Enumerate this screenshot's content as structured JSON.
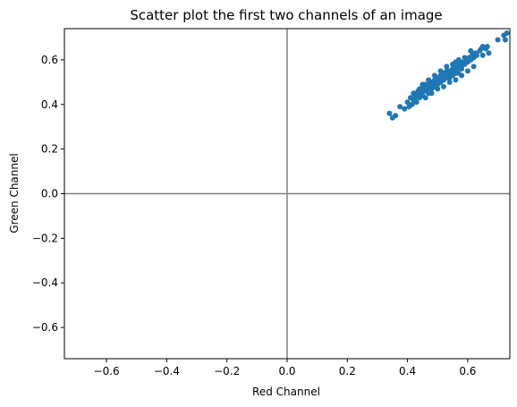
{
  "chart_data": {
    "type": "scatter",
    "title": "Scatter plot the first two channels of an image",
    "xlabel": "Red Channel",
    "ylabel": "Green Channel",
    "xlim": [
      -0.74,
      0.74
    ],
    "ylim": [
      -0.74,
      0.74
    ],
    "xticks": [
      -0.6,
      -0.4,
      -0.2,
      0.0,
      0.2,
      0.4,
      0.6
    ],
    "xtick_labels": [
      "−0.6",
      "−0.4",
      "−0.2",
      "0.0",
      "0.2",
      "0.4",
      "0.6"
    ],
    "yticks": [
      -0.6,
      -0.4,
      -0.2,
      0.0,
      0.2,
      0.4,
      0.6
    ],
    "ytick_labels": [
      "−0.6",
      "−0.4",
      "−0.2",
      "0.0",
      "0.2",
      "0.4",
      "0.6"
    ],
    "grid": false,
    "reference_lines": {
      "x": 0,
      "y": 0,
      "color": "#808080"
    },
    "series": [
      {
        "color": "#1f77b4",
        "x": [
          0.34,
          0.35,
          0.36,
          0.375,
          0.39,
          0.4,
          0.405,
          0.41,
          0.415,
          0.42,
          0.42,
          0.425,
          0.43,
          0.43,
          0.435,
          0.44,
          0.44,
          0.445,
          0.45,
          0.45,
          0.455,
          0.46,
          0.46,
          0.465,
          0.47,
          0.47,
          0.475,
          0.48,
          0.48,
          0.485,
          0.49,
          0.49,
          0.495,
          0.5,
          0.5,
          0.505,
          0.51,
          0.51,
          0.515,
          0.52,
          0.52,
          0.525,
          0.53,
          0.53,
          0.535,
          0.54,
          0.54,
          0.545,
          0.55,
          0.55,
          0.555,
          0.56,
          0.56,
          0.565,
          0.57,
          0.57,
          0.575,
          0.58,
          0.58,
          0.585,
          0.59,
          0.595,
          0.6,
          0.605,
          0.61,
          0.615,
          0.62,
          0.625,
          0.63,
          0.64,
          0.645,
          0.65,
          0.66,
          0.665,
          0.45,
          0.47,
          0.49,
          0.51,
          0.53,
          0.55,
          0.57,
          0.59,
          0.46,
          0.48,
          0.5,
          0.52,
          0.54,
          0.56,
          0.58,
          0.6,
          0.62,
          0.44,
          0.5,
          0.56,
          0.61,
          0.65,
          0.72,
          0.73,
          0.725,
          0.67,
          0.7
        ],
        "y": [
          0.36,
          0.34,
          0.35,
          0.39,
          0.38,
          0.41,
          0.39,
          0.43,
          0.4,
          0.42,
          0.45,
          0.43,
          0.44,
          0.41,
          0.46,
          0.43,
          0.45,
          0.47,
          0.44,
          0.46,
          0.48,
          0.46,
          0.49,
          0.47,
          0.45,
          0.48,
          0.5,
          0.47,
          0.5,
          0.49,
          0.48,
          0.51,
          0.5,
          0.49,
          0.52,
          0.51,
          0.5,
          0.53,
          0.52,
          0.51,
          0.54,
          0.53,
          0.52,
          0.55,
          0.53,
          0.52,
          0.55,
          0.54,
          0.53,
          0.56,
          0.55,
          0.54,
          0.57,
          0.56,
          0.54,
          0.58,
          0.57,
          0.56,
          0.59,
          0.58,
          0.58,
          0.6,
          0.59,
          0.61,
          0.6,
          0.62,
          0.61,
          0.63,
          0.62,
          0.64,
          0.65,
          0.66,
          0.65,
          0.66,
          0.49,
          0.51,
          0.53,
          0.55,
          0.57,
          0.58,
          0.6,
          0.61,
          0.43,
          0.45,
          0.47,
          0.48,
          0.5,
          0.51,
          0.53,
          0.55,
          0.57,
          0.47,
          0.52,
          0.59,
          0.64,
          0.62,
          0.71,
          0.72,
          0.69,
          0.63,
          0.69
        ]
      }
    ]
  }
}
